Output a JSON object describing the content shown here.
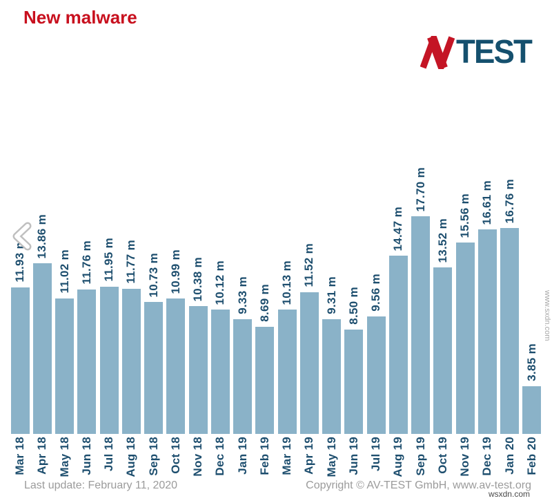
{
  "page": {
    "title": "New malware",
    "watermark_side": "www.sxdn.com",
    "watermark_bottom": "wsxdn.com"
  },
  "logo": {
    "name": "AV-TEST",
    "mark": "AV",
    "text": "TEST",
    "mark_color": "#c41525",
    "text_color": "#15506e"
  },
  "footer": {
    "last_update": "Last update: February 11, 2020",
    "copyright": "Copyright © AV-TEST GmbH, www.av-test.org"
  },
  "colors": {
    "title_red": "#c8101e",
    "bar_fill": "#8ab2c8",
    "data_label": "#1d4e6e",
    "footer_gray": "#9b9b9b"
  },
  "chart_data": {
    "type": "bar",
    "title": "New malware",
    "xlabel": "",
    "ylabel": "",
    "unit": "m (millions of new malware samples)",
    "ylim": [
      0,
      18
    ],
    "grid": false,
    "legend": "none",
    "bar_color": "#8ab2c8",
    "label_color": "#1d4e6e",
    "categories": [
      "Mar 18",
      "Apr 18",
      "May 18",
      "Jun 18",
      "Jul 18",
      "Aug 18",
      "Sep 18",
      "Oct 18",
      "Nov 18",
      "Dec 18",
      "Jan 19",
      "Feb 19",
      "Mar 19",
      "Apr 19",
      "May 19",
      "Jun 19",
      "Jul 19",
      "Aug 19",
      "Sep 19",
      "Oct 19",
      "Nov 19",
      "Dec 19",
      "Jan 20",
      "Feb 20"
    ],
    "values": [
      11.93,
      13.86,
      11.02,
      11.76,
      11.95,
      11.77,
      10.73,
      10.99,
      10.38,
      10.12,
      9.33,
      8.69,
      10.13,
      11.52,
      9.31,
      8.5,
      9.56,
      14.47,
      17.7,
      13.52,
      15.56,
      16.61,
      16.76,
      3.85
    ],
    "value_labels": [
      "11.93 m",
      "13.86 m",
      "11.02 m",
      "11.76 m",
      "11.95 m",
      "11.77 m",
      "10.73 m",
      "10.99 m",
      "10.38 m",
      "10.12 m",
      "9.33 m",
      "8.69 m",
      "10.13 m",
      "11.52 m",
      "9.31 m",
      "8.50 m",
      "9.56 m",
      "14.47 m",
      "17.70 m",
      "13.52 m",
      "15.56 m",
      "16.61 m",
      "16.76 m",
      "3.85 m"
    ]
  }
}
